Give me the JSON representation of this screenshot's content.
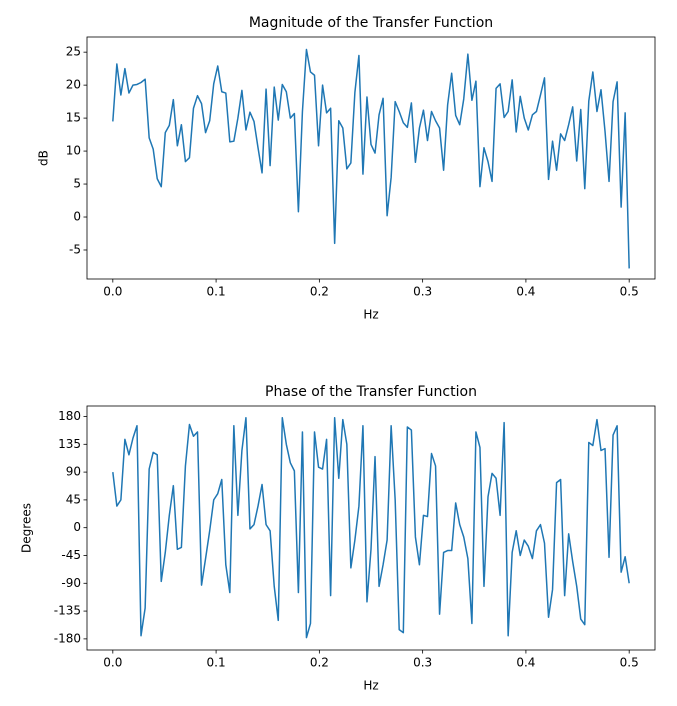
{
  "chart_data": [
    {
      "type": "line",
      "title": "Magnitude of the Transfer Function",
      "xlabel": "Hz",
      "ylabel": "dB",
      "x": [
        0,
        0.0039,
        0.0078,
        0.0117,
        0.0156,
        0.0195,
        0.0234,
        0.0273,
        0.0313,
        0.0352,
        0.0391,
        0.043,
        0.0469,
        0.0508,
        0.0547,
        0.0586,
        0.0625,
        0.0664,
        0.0703,
        0.0742,
        0.0781,
        0.082,
        0.0859,
        0.0898,
        0.0938,
        0.0977,
        0.1016,
        0.1055,
        0.1094,
        0.1133,
        0.1172,
        0.1211,
        0.125,
        0.1289,
        0.1328,
        0.1367,
        0.1406,
        0.1445,
        0.1484,
        0.1523,
        0.1563,
        0.1602,
        0.1641,
        0.168,
        0.1719,
        0.1758,
        0.1797,
        0.1836,
        0.1875,
        0.1914,
        0.1953,
        0.1992,
        0.2031,
        0.207,
        0.2109,
        0.2148,
        0.2188,
        0.2227,
        0.2266,
        0.2305,
        0.2344,
        0.2383,
        0.2422,
        0.2461,
        0.25,
        0.2539,
        0.2578,
        0.2617,
        0.2656,
        0.2695,
        0.2734,
        0.2773,
        0.2813,
        0.2852,
        0.2891,
        0.293,
        0.2969,
        0.3008,
        0.3047,
        0.3086,
        0.3125,
        0.3164,
        0.3203,
        0.3242,
        0.3281,
        0.332,
        0.3359,
        0.3398,
        0.3438,
        0.3477,
        0.3516,
        0.3555,
        0.3594,
        0.3633,
        0.3672,
        0.3711,
        0.375,
        0.3789,
        0.3828,
        0.3867,
        0.3906,
        0.3945,
        0.3984,
        0.4023,
        0.4063,
        0.4102,
        0.4141,
        0.418,
        0.4219,
        0.4258,
        0.4297,
        0.4336,
        0.4375,
        0.4414,
        0.4453,
        0.4492,
        0.4531,
        0.457,
        0.4609,
        0.4648,
        0.4688,
        0.4727,
        0.4766,
        0.4805,
        0.4844,
        0.4883,
        0.4922,
        0.4961,
        0.5
      ],
      "values": [
        14.5,
        23.2,
        18.5,
        22.5,
        18.8,
        20,
        20.1,
        20.4,
        20.9,
        12,
        10.3,
        5.8,
        4.6,
        12.8,
        13.9,
        17.8,
        10.8,
        14,
        8.4,
        9,
        16.5,
        18.4,
        17.2,
        12.8,
        14.6,
        20.2,
        22.9,
        19,
        18.8,
        11.4,
        11.5,
        15,
        19.2,
        13.2,
        15.9,
        14.5,
        10.5,
        6.7,
        19.4,
        7.8,
        19.7,
        14.7,
        20.1,
        19,
        15,
        15.7,
        0.8,
        16,
        25.4,
        22,
        21.5,
        10.8,
        20,
        15.8,
        16.5,
        -4,
        14.6,
        13.5,
        7.3,
        8.2,
        18.9,
        24.5,
        6.5,
        18.2,
        11,
        9.7,
        15.5,
        18,
        0.2,
        6,
        17.5,
        16,
        14.3,
        13.6,
        17.3,
        8.3,
        13.5,
        16.2,
        11.6,
        16,
        14.6,
        13.5,
        7.1,
        17,
        21.8,
        15.4,
        14,
        17.9,
        24.7,
        17.7,
        20.6,
        4.6,
        10.5,
        8.4,
        5.4,
        19.5,
        20.2,
        15.1,
        16,
        20.8,
        12.9,
        18.3,
        15,
        13.2,
        15.5,
        16,
        18.5,
        21.1,
        5.7,
        11.5,
        7.1,
        12.6,
        11.6,
        14,
        16.7,
        8.5,
        16.3,
        4.3,
        17.6,
        22,
        16,
        19.3,
        13,
        5.4,
        17.5,
        20.5,
        1.5,
        15.8,
        -7.8
      ],
      "color": "#1f77b4",
      "xlim": [
        -0.025,
        0.525
      ],
      "ylim": [
        -9.4,
        27.3
      ],
      "xticks": [
        {
          "value": 0,
          "label": "0.0"
        },
        0.1,
        0.2,
        0.3,
        0.4,
        0.5
      ],
      "yticks": [
        -5,
        0,
        5,
        10,
        15,
        20,
        25
      ]
    },
    {
      "type": "line",
      "title": "Phase of the Transfer Function",
      "xlabel": "Hz",
      "ylabel": "Degrees",
      "x": [
        0,
        0.0039,
        0.0078,
        0.0117,
        0.0156,
        0.0195,
        0.0234,
        0.0273,
        0.0313,
        0.0352,
        0.0391,
        0.043,
        0.0469,
        0.0508,
        0.0547,
        0.0586,
        0.0625,
        0.0664,
        0.0703,
        0.0742,
        0.0781,
        0.082,
        0.0859,
        0.0898,
        0.0938,
        0.0977,
        0.1016,
        0.1055,
        0.1094,
        0.1133,
        0.1172,
        0.1211,
        0.125,
        0.1289,
        0.1328,
        0.1367,
        0.1406,
        0.1445,
        0.1484,
        0.1523,
        0.1563,
        0.1602,
        0.1641,
        0.168,
        0.1719,
        0.1758,
        0.1797,
        0.1836,
        0.1875,
        0.1914,
        0.1953,
        0.1992,
        0.2031,
        0.207,
        0.2109,
        0.2148,
        0.2188,
        0.2227,
        0.2266,
        0.2305,
        0.2344,
        0.2383,
        0.2422,
        0.2461,
        0.25,
        0.2539,
        0.2578,
        0.2617,
        0.2656,
        0.2695,
        0.2734,
        0.2773,
        0.2813,
        0.2852,
        0.2891,
        0.293,
        0.2969,
        0.3008,
        0.3047,
        0.3086,
        0.3125,
        0.3164,
        0.3203,
        0.3242,
        0.3281,
        0.332,
        0.3359,
        0.3398,
        0.3438,
        0.3477,
        0.3516,
        0.3555,
        0.3594,
        0.3633,
        0.3672,
        0.3711,
        0.375,
        0.3789,
        0.3828,
        0.3867,
        0.3906,
        0.3945,
        0.3984,
        0.4023,
        0.4063,
        0.4102,
        0.4141,
        0.418,
        0.4219,
        0.4258,
        0.4297,
        0.4336,
        0.4375,
        0.4414,
        0.4453,
        0.4492,
        0.4531,
        0.457,
        0.4609,
        0.4648,
        0.4688,
        0.4727,
        0.4766,
        0.4805,
        0.4844,
        0.4883,
        0.4922,
        0.4961,
        0.5
      ],
      "values": [
        90,
        35,
        45,
        143,
        118,
        145,
        165,
        -175,
        -130,
        95,
        122,
        118,
        -87,
        -40,
        20,
        68,
        -35,
        -32,
        100,
        167,
        148,
        155,
        -93,
        -50,
        -5,
        45,
        55,
        78,
        -60,
        -105,
        165,
        20,
        125,
        178,
        -2,
        5,
        35,
        70,
        5,
        -5,
        -95,
        -150,
        178,
        135,
        105,
        92,
        -105,
        155,
        -178,
        -155,
        155,
        98,
        95,
        143,
        -110,
        178,
        80,
        175,
        135,
        -65,
        -20,
        35,
        165,
        -120,
        -35,
        115,
        -95,
        -60,
        -20,
        165,
        45,
        -165,
        -170,
        163,
        158,
        -15,
        -60,
        20,
        18,
        120,
        100,
        -140,
        -40,
        -37,
        -37,
        40,
        5,
        -15,
        -50,
        -155,
        155,
        130,
        -95,
        50,
        88,
        80,
        20,
        170,
        -175,
        -40,
        -5,
        -45,
        -20,
        -30,
        -50,
        -5,
        5,
        -25,
        -145,
        -100,
        73,
        78,
        -110,
        -10,
        -55,
        -95,
        -148,
        -157,
        138,
        133,
        175,
        125,
        128,
        -48,
        150,
        165,
        -72,
        -47,
        -90
      ],
      "color": "#1f77b4",
      "xlim": [
        -0.025,
        0.525
      ],
      "ylim": [
        -198,
        197
      ],
      "xticks": [
        {
          "value": 0,
          "label": "0.0"
        },
        0.1,
        0.2,
        0.3,
        0.4,
        0.5
      ],
      "yticks": [
        -180,
        -135,
        -90,
        -45,
        0,
        45,
        90,
        135,
        180
      ]
    }
  ]
}
